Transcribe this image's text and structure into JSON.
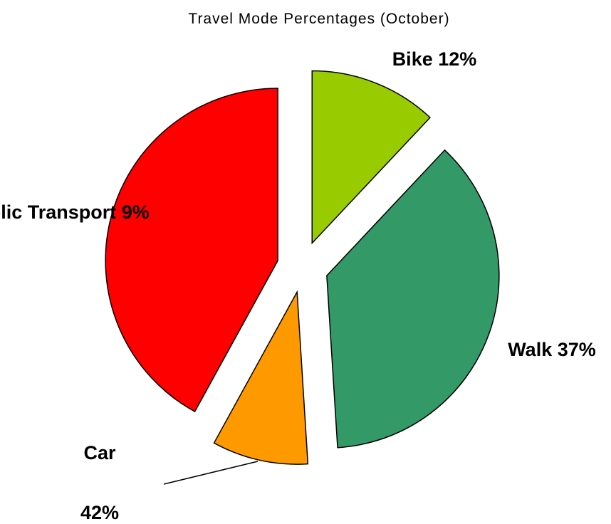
{
  "chart_data": {
    "type": "pie",
    "title": "Travel Mode Percentages (October)",
    "categories": [
      "Bike",
      "Walk",
      "Public Transport",
      "Car"
    ],
    "values": [
      12,
      37,
      9,
      42
    ],
    "value_labels": [
      "12%",
      "37%",
      "9%",
      "42%"
    ],
    "colors": [
      "#99cc00",
      "#339966",
      "#ff9900",
      "#ff0000"
    ]
  }
}
